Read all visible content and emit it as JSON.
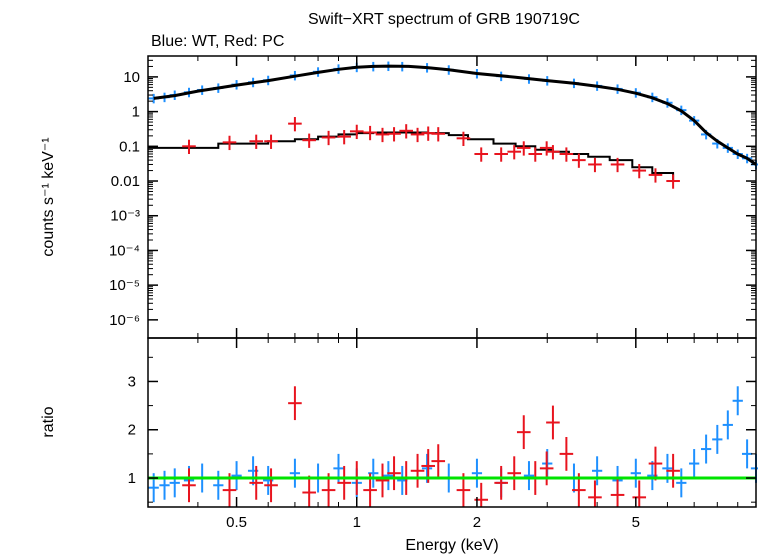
{
  "chart_data": [
    {
      "type": "scatter",
      "title": "Swift−XRT spectrum of GRB 190719C",
      "subtitle": "Blue: WT, Red: PC",
      "xlabel": "",
      "ylabel": "counts s⁻¹ keV⁻¹",
      "x_scale": "log",
      "y_scale": "log",
      "xlim": [
        0.3,
        10
      ],
      "ylim": [
        3e-07,
        40
      ],
      "y_tick_labels": [
        "10",
        "1",
        "0.1",
        "0.01",
        "10⁻³",
        "10⁻⁴",
        "10⁻⁵",
        "10⁻⁶"
      ],
      "colors": {
        "WT": "#1e90ff",
        "PC": "#e8141e",
        "model": "#000000"
      },
      "series": [
        {
          "id": "WT",
          "x": [
            0.31,
            0.33,
            0.35,
            0.38,
            0.41,
            0.45,
            0.5,
            0.55,
            0.6,
            0.7,
            0.8,
            0.9,
            1.0,
            1.1,
            1.2,
            1.3,
            1.5,
            1.7,
            2.0,
            2.3,
            2.7,
            3.0,
            3.5,
            4.0,
            4.5,
            5.0,
            5.5,
            6.0,
            6.5,
            7.0,
            7.5,
            8.0,
            8.5,
            9.0,
            9.5,
            10.0
          ],
          "y": [
            2.4,
            2.6,
            3.0,
            3.6,
            4.2,
            4.8,
            6.0,
            7.0,
            8.0,
            11.0,
            14.0,
            17.0,
            19.0,
            20.0,
            20.5,
            20.0,
            18.5,
            16.0,
            12.5,
            10.5,
            8.8,
            7.8,
            6.6,
            5.5,
            4.5,
            3.5,
            2.6,
            1.8,
            1.1,
            0.55,
            0.22,
            0.12,
            0.09,
            0.06,
            0.045,
            0.03
          ]
        },
        {
          "id": "PC",
          "x": [
            0.38,
            0.48,
            0.56,
            0.61,
            0.7,
            0.76,
            0.85,
            0.93,
            1.0,
            1.08,
            1.16,
            1.24,
            1.33,
            1.42,
            1.51,
            1.6,
            1.85,
            2.05,
            2.3,
            2.48,
            2.62,
            2.8,
            2.99,
            3.1,
            3.35,
            3.6,
            3.95,
            4.5,
            5.1,
            5.6,
            6.2
          ],
          "y": [
            0.1,
            0.13,
            0.14,
            0.14,
            0.45,
            0.15,
            0.18,
            0.19,
            0.27,
            0.25,
            0.22,
            0.23,
            0.28,
            0.22,
            0.24,
            0.23,
            0.17,
            0.06,
            0.06,
            0.07,
            0.09,
            0.06,
            0.09,
            0.07,
            0.06,
            0.04,
            0.03,
            0.03,
            0.02,
            0.015,
            0.01
          ]
        },
        {
          "id": "WT-model",
          "x": [
            0.31,
            0.35,
            0.4,
            0.45,
            0.5,
            0.6,
            0.7,
            0.8,
            0.9,
            1.0,
            1.1,
            1.2,
            1.35,
            1.5,
            1.7,
            2.0,
            2.5,
            3.0,
            3.5,
            4.0,
            4.5,
            5.0,
            5.5,
            6.0,
            6.5,
            7.0,
            7.5,
            8.0,
            8.5,
            9.0,
            9.5,
            10.0
          ],
          "y": [
            2.4,
            2.9,
            3.9,
            4.8,
            5.8,
            7.8,
            10.5,
            13.5,
            16.5,
            19.0,
            20.0,
            20.5,
            20.0,
            18.5,
            16.0,
            12.5,
            9.8,
            7.8,
            6.6,
            5.4,
            4.4,
            3.4,
            2.5,
            1.7,
            1.05,
            0.55,
            0.25,
            0.14,
            0.09,
            0.06,
            0.045,
            0.03
          ]
        },
        {
          "id": "PC-model",
          "x": [
            0.3,
            0.45,
            0.6,
            0.7,
            0.8,
            0.9,
            1.0,
            1.1,
            1.2,
            1.35,
            1.5,
            1.7,
            1.9,
            2.2,
            2.5,
            2.8,
            3.1,
            3.4,
            3.8,
            4.3,
            4.9,
            5.5,
            6.2
          ],
          "y": [
            0.09,
            0.12,
            0.14,
            0.16,
            0.19,
            0.22,
            0.24,
            0.25,
            0.25,
            0.25,
            0.24,
            0.21,
            0.16,
            0.12,
            0.1,
            0.08,
            0.07,
            0.06,
            0.05,
            0.04,
            0.025,
            0.017,
            0.01
          ]
        }
      ]
    },
    {
      "type": "scatter",
      "xlabel": "Energy (keV)",
      "ylabel": "ratio",
      "x_scale": "log",
      "xlim": [
        0.3,
        10
      ],
      "ylim": [
        0.4,
        3.9
      ],
      "x_tick_labels": [
        "0.5",
        "1",
        "2",
        "5"
      ],
      "y_tick_labels": [
        "1",
        "2",
        "3"
      ],
      "reference_line": {
        "y": 1,
        "color": "#00e400"
      },
      "series": [
        {
          "id": "WT",
          "x": [
            0.31,
            0.33,
            0.35,
            0.38,
            0.41,
            0.45,
            0.5,
            0.55,
            0.6,
            0.7,
            0.8,
            0.9,
            1.0,
            1.1,
            1.2,
            1.3,
            1.5,
            1.7,
            2.0,
            2.3,
            2.7,
            3.0,
            3.5,
            4.0,
            4.5,
            5.0,
            5.5,
            6.0,
            6.5,
            7.0,
            7.5,
            8.0,
            8.5,
            9.0,
            9.5,
            10.0
          ],
          "y": [
            0.8,
            0.85,
            0.9,
            0.95,
            1.0,
            0.85,
            1.05,
            1.15,
            0.95,
            1.1,
            1.0,
            1.2,
            0.9,
            1.1,
            1.05,
            0.95,
            1.2,
            1.0,
            1.1,
            0.9,
            1.05,
            1.3,
            1.0,
            1.15,
            0.95,
            1.1,
            1.05,
            1.2,
            0.9,
            1.3,
            1.6,
            1.8,
            2.1,
            2.6,
            1.5,
            1.2
          ]
        },
        {
          "id": "PC",
          "x": [
            0.38,
            0.48,
            0.56,
            0.61,
            0.7,
            0.76,
            0.85,
            0.93,
            1.0,
            1.08,
            1.16,
            1.24,
            1.33,
            1.42,
            1.51,
            1.6,
            1.85,
            2.05,
            2.3,
            2.48,
            2.62,
            2.8,
            2.99,
            3.1,
            3.35,
            3.6,
            3.95,
            4.5,
            5.1,
            5.6,
            6.2
          ],
          "y": [
            0.85,
            0.75,
            0.9,
            0.85,
            2.55,
            0.7,
            0.75,
            0.9,
            1.0,
            0.75,
            0.95,
            1.1,
            1.0,
            1.15,
            1.25,
            1.35,
            0.75,
            0.55,
            0.9,
            1.1,
            1.95,
            1.0,
            1.2,
            2.15,
            1.5,
            0.75,
            0.6,
            0.65,
            0.6,
            1.3,
            1.15
          ]
        }
      ]
    }
  ]
}
